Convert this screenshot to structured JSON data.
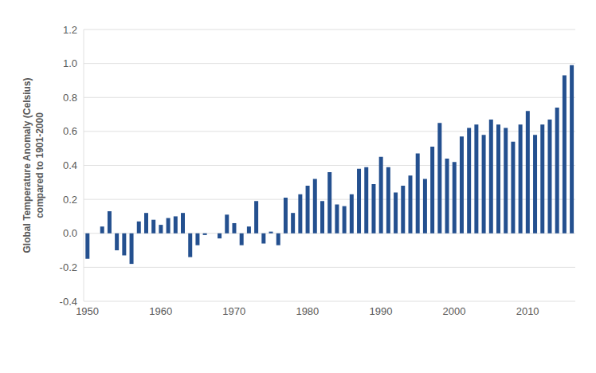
{
  "chart_data": {
    "type": "bar",
    "y_label": "Global Temperature Anomaly (Celsius)\ncompared to 1901-2000",
    "categories": [
      "1950",
      null,
      null,
      null,
      null,
      null,
      null,
      null,
      null,
      null,
      "1960",
      null,
      null,
      null,
      null,
      null,
      null,
      null,
      null,
      null,
      "1970",
      null,
      null,
      null,
      null,
      null,
      null,
      null,
      null,
      null,
      "1980",
      null,
      null,
      null,
      null,
      null,
      null,
      null,
      null,
      null,
      "1990",
      null,
      null,
      null,
      null,
      null,
      null,
      null,
      null,
      null,
      "2000",
      null,
      null,
      null,
      null,
      null,
      null,
      null,
      null,
      null,
      "2010",
      null,
      null,
      null,
      null,
      null,
      null
    ],
    "values": [
      -0.15,
      0,
      0.04,
      0.13,
      -0.1,
      -0.13,
      -0.18,
      0.07,
      0.12,
      0.08,
      0.05,
      0.09,
      0.1,
      0.12,
      -0.14,
      -0.07,
      -0.01,
      0,
      -0.03,
      0.11,
      0.06,
      -0.07,
      0.04,
      0.19,
      -0.06,
      0.01,
      -0.07,
      0.21,
      0.12,
      0.23,
      0.28,
      0.32,
      0.19,
      0.36,
      0.17,
      0.16,
      0.23,
      0.38,
      0.39,
      0.29,
      0.45,
      0.39,
      0.24,
      0.28,
      0.34,
      0.47,
      0.32,
      0.51,
      0.65,
      0.44,
      0.42,
      0.57,
      0.62,
      0.64,
      0.58,
      0.67,
      0.64,
      0.62,
      0.54,
      0.64,
      0.72,
      0.58,
      0.64,
      0.67,
      0.74,
      0.93,
      0.99
    ],
    "color": "#24508f",
    "ylim": [
      -0.4,
      1.2
    ],
    "yticks": [
      -0.4,
      -0.2,
      {
        "value": 0,
        "label": "0.0"
      },
      0.2,
      0.4,
      0.6,
      0.8,
      {
        "value": 1,
        "label": "1.0"
      },
      1.2
    ],
    "grid": true
  }
}
